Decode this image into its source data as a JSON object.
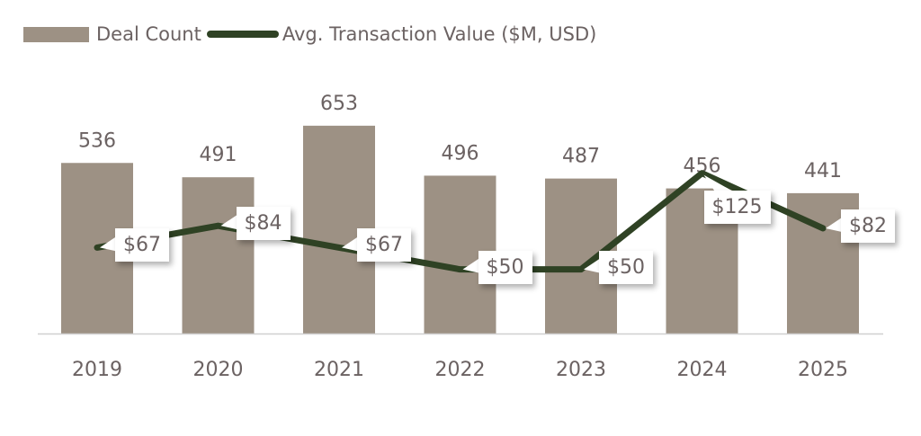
{
  "chart_data": {
    "type": "bar",
    "categories": [
      "2019",
      "2020",
      "2021",
      "2022",
      "2023",
      "2024",
      "2025"
    ],
    "series": [
      {
        "name": "Deal Count",
        "type": "bar",
        "values": [
          536,
          491,
          653,
          496,
          487,
          456,
          441
        ],
        "labels": [
          "536",
          "491",
          "653",
          "496",
          "487",
          "456",
          "441"
        ],
        "color": "#9d9184"
      },
      {
        "name": "Avg. Transaction Value ($M, USD)",
        "type": "line",
        "values": [
          67,
          84,
          67,
          50,
          50,
          125,
          82
        ],
        "labels": [
          "$67",
          "$84",
          "$67",
          "$50",
          "$50",
          "$125",
          "$82"
        ],
        "color": "#2f4224"
      }
    ],
    "legend": "top-left",
    "grid": false
  }
}
